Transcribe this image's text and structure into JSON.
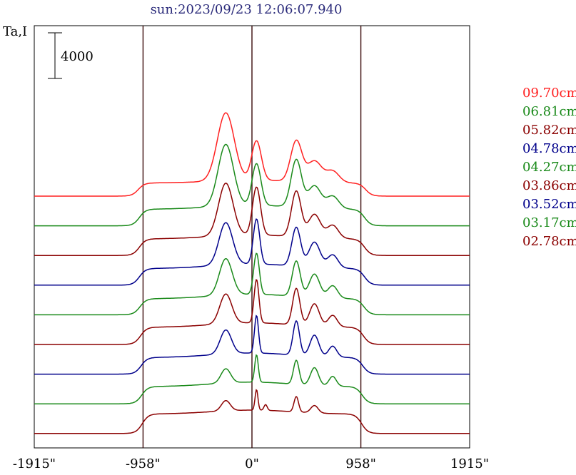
{
  "chart_data": {
    "type": "line",
    "title": "sun:2023/09/23 12:06:07.940",
    "ylabel": "Ta,I",
    "scale_bar_label": "4000",
    "scale_bar_value": 4000,
    "x_ticks": [
      "-1915\"",
      "-958\"",
      "0\"",
      "958\"",
      "1915\""
    ],
    "x_tick_values": [
      -1915,
      -958,
      0,
      958,
      1915
    ],
    "vertical_lines_at": [
      -958,
      0,
      958
    ],
    "xlim": [
      -1915,
      1915
    ],
    "grid": false,
    "legend_position": "right",
    "series": [
      {
        "name": "09.70cm",
        "color": "#ff2020",
        "baseline": 0,
        "wing_level": 1150,
        "wing_edge": 1000,
        "core_offset": 250,
        "peaks": [
          [
            -230,
            105,
            5950
          ],
          [
            40,
            60,
            3450
          ],
          [
            390,
            70,
            3550
          ],
          [
            550,
            90,
            1850
          ],
          [
            710,
            80,
            1000
          ]
        ]
      },
      {
        "name": "06.81cm",
        "color": "#1a8a1a",
        "baseline": 0,
        "wing_level": 1450,
        "wing_edge": 990,
        "core_offset": 350,
        "peaks": [
          [
            -230,
            95,
            5400
          ],
          [
            40,
            55,
            3650
          ],
          [
            390,
            65,
            4150
          ],
          [
            550,
            80,
            1950
          ],
          [
            710,
            75,
            1100
          ]
        ]
      },
      {
        "name": "05.82cm",
        "color": "#8b0000",
        "baseline": 0,
        "wing_level": 1450,
        "wing_edge": 990,
        "core_offset": 350,
        "peaks": [
          [
            -230,
            90,
            4600
          ],
          [
            40,
            50,
            4200
          ],
          [
            390,
            60,
            4000
          ],
          [
            550,
            75,
            2050
          ],
          [
            710,
            70,
            1150
          ]
        ]
      },
      {
        "name": "04.78cm",
        "color": "#00008b",
        "baseline": 0,
        "wing_level": 1450,
        "wing_edge": 990,
        "core_offset": 400,
        "peaks": [
          [
            -230,
            85,
            3700
          ],
          [
            40,
            40,
            3950
          ],
          [
            390,
            55,
            3400
          ],
          [
            550,
            70,
            2200
          ],
          [
            710,
            65,
            1150
          ]
        ]
      },
      {
        "name": "04.27cm",
        "color": "#1a8a1a",
        "baseline": 0,
        "wing_level": 1400,
        "wing_edge": 985,
        "core_offset": 400,
        "peaks": [
          [
            -230,
            80,
            3200
          ],
          [
            40,
            35,
            3600
          ],
          [
            390,
            50,
            3100
          ],
          [
            550,
            65,
            2050
          ],
          [
            710,
            60,
            1100
          ]
        ]
      },
      {
        "name": "03.86cm",
        "color": "#8b0000",
        "baseline": 0,
        "wing_level": 1500,
        "wing_edge": 980,
        "core_offset": 400,
        "peaks": [
          [
            -230,
            75,
            2600
          ],
          [
            40,
            30,
            3800
          ],
          [
            390,
            45,
            3200
          ],
          [
            550,
            60,
            1950
          ],
          [
            710,
            55,
            1000
          ]
        ]
      },
      {
        "name": "03.52cm",
        "color": "#00008b",
        "baseline": 0,
        "wing_level": 1450,
        "wing_edge": 975,
        "core_offset": 400,
        "peaks": [
          [
            -230,
            70,
            2100
          ],
          [
            40,
            25,
            3300
          ],
          [
            390,
            40,
            3000
          ],
          [
            550,
            55,
            1850
          ],
          [
            710,
            50,
            950
          ]
        ]
      },
      {
        "name": "03.17cm",
        "color": "#1a8a1a",
        "baseline": 0,
        "wing_level": 1500,
        "wing_edge": 970,
        "core_offset": 400,
        "peaks": [
          [
            -230,
            60,
            1250
          ],
          [
            40,
            22,
            2400
          ],
          [
            390,
            35,
            2100
          ],
          [
            550,
            50,
            1550
          ],
          [
            710,
            45,
            850
          ]
        ]
      },
      {
        "name": "02.78cm",
        "color": "#8b0000",
        "baseline": 0,
        "wing_level": 1700,
        "wing_edge": 965,
        "core_offset": 350,
        "peaks": [
          [
            -230,
            55,
            900
          ],
          [
            40,
            18,
            1800
          ],
          [
            390,
            28,
            1350
          ],
          [
            120,
            20,
            500
          ],
          [
            550,
            45,
            650
          ]
        ]
      }
    ]
  }
}
